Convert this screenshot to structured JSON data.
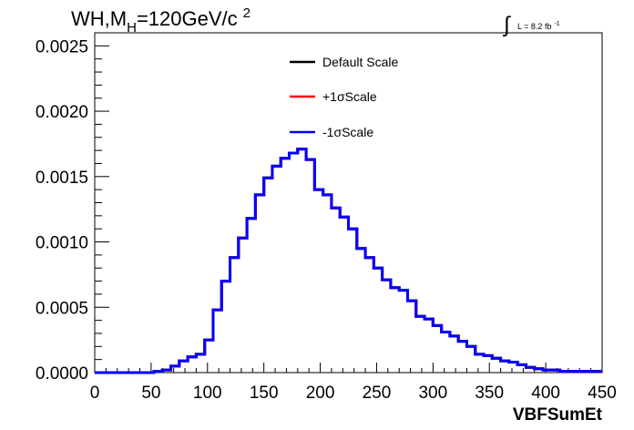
{
  "chart_data": {
    "type": "line",
    "title_parts": {
      "pre": "WH,M",
      "sub": "H",
      "mid": "=120GeV/c",
      "sup": "2"
    },
    "lumi": {
      "symbol": "∫",
      "text": "L = 8.2 fb",
      "sup": "-1"
    },
    "xlabel": "VBFSumEt",
    "ylabel": "",
    "xlim": [
      0,
      450
    ],
    "ylim": [
      0,
      0.0026
    ],
    "xticks": [
      0,
      50,
      100,
      150,
      200,
      250,
      300,
      350,
      400,
      450
    ],
    "xtick_labels": [
      "0",
      "50",
      "100",
      "150",
      "200",
      "250",
      "300",
      "350",
      "400",
      "450"
    ],
    "yticks": [
      0,
      0.0005,
      0.001,
      0.0015,
      0.002,
      0.0025
    ],
    "ytick_labels": [
      "0.0000",
      "0.0005",
      "0.0010",
      "0.0015",
      "0.0020",
      "0.0025"
    ],
    "bin_width": 7.5,
    "bin_edges_start": 0,
    "legend_position": "top-center",
    "grid": false,
    "series": [
      {
        "name": "Default Scale",
        "color": "#000000",
        "style": "step",
        "values": [
          0,
          0,
          0,
          0,
          0,
          0,
          0,
          1e-05,
          2e-05,
          5e-05,
          9e-05,
          0.00012,
          0.00014,
          0.00025,
          0.00048,
          0.0007,
          0.00088,
          0.00103,
          0.00118,
          0.00136,
          0.00149,
          0.00158,
          0.00164,
          0.00168,
          0.00171,
          0.00163,
          0.0014,
          0.00136,
          0.00126,
          0.00119,
          0.0011,
          0.00095,
          0.00088,
          0.0008,
          0.00071,
          0.00065,
          0.00063,
          0.00055,
          0.00043,
          0.00041,
          0.00036,
          0.00031,
          0.00028,
          0.00024,
          0.0002,
          0.00014,
          0.00013,
          0.00011,
          9e-05,
          8e-05,
          6e-05,
          4e-05,
          3e-05,
          2e-05,
          2e-05,
          1e-05,
          1e-05,
          1e-05,
          1e-05,
          1e-05
        ]
      },
      {
        "name": "+1σScale",
        "color": "#ff0000",
        "style": "step",
        "values": [
          0,
          0,
          0,
          0,
          0,
          0,
          0,
          1e-05,
          2e-05,
          5e-05,
          9e-05,
          0.00012,
          0.00014,
          0.00025,
          0.00048,
          0.0007,
          0.00088,
          0.00103,
          0.00118,
          0.00136,
          0.00149,
          0.00158,
          0.00164,
          0.00168,
          0.00171,
          0.00163,
          0.0014,
          0.00136,
          0.00126,
          0.00119,
          0.0011,
          0.00095,
          0.00088,
          0.0008,
          0.00071,
          0.00065,
          0.00063,
          0.00055,
          0.00043,
          0.00041,
          0.00036,
          0.00031,
          0.00028,
          0.00024,
          0.0002,
          0.00014,
          0.00013,
          0.00011,
          9e-05,
          8e-05,
          6e-05,
          4e-05,
          3e-05,
          2e-05,
          2e-05,
          1e-05,
          1e-05,
          1e-05,
          1e-05,
          1e-05
        ]
      },
      {
        "name": "-1σScale",
        "color": "#0000ff",
        "style": "step",
        "values": [
          0,
          0,
          0,
          0,
          0,
          0,
          0,
          1e-05,
          2e-05,
          5e-05,
          9e-05,
          0.00012,
          0.00014,
          0.00025,
          0.00048,
          0.0007,
          0.00088,
          0.00103,
          0.00118,
          0.00136,
          0.00149,
          0.00158,
          0.00164,
          0.00168,
          0.00171,
          0.00163,
          0.0014,
          0.00136,
          0.00126,
          0.00119,
          0.0011,
          0.00095,
          0.00088,
          0.0008,
          0.00071,
          0.00065,
          0.00063,
          0.00055,
          0.00043,
          0.00041,
          0.00036,
          0.00031,
          0.00028,
          0.00024,
          0.0002,
          0.00014,
          0.00013,
          0.00011,
          9e-05,
          8e-05,
          6e-05,
          4e-05,
          3e-05,
          2e-05,
          2e-05,
          1e-05,
          1e-05,
          1e-05,
          1e-05,
          1e-05
        ]
      }
    ]
  }
}
